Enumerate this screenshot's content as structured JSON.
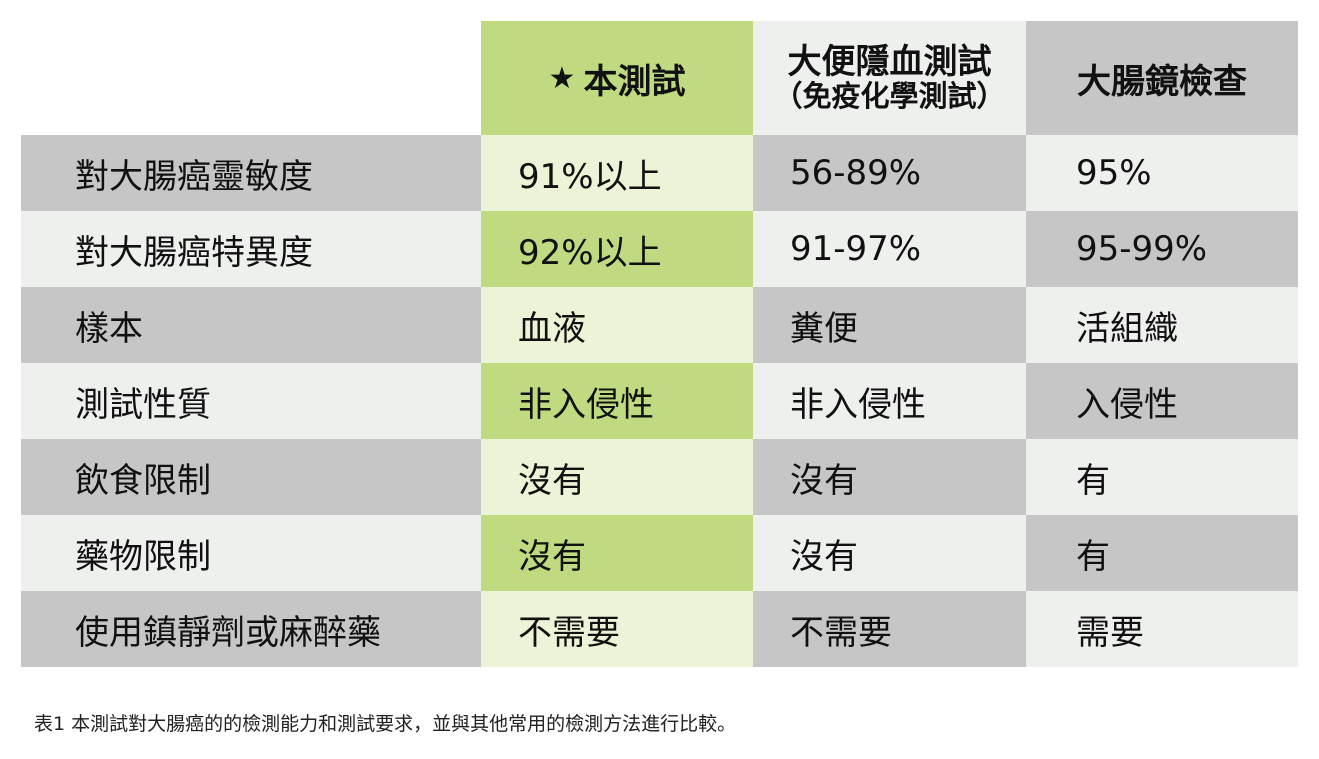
{
  "header": {
    "col1_star": "★",
    "col1": "本測試",
    "col2_line1": "大便隱血測試",
    "col2_line2": "（免疫化學測試）",
    "col3": "大腸鏡檢查"
  },
  "rows": [
    {
      "label": "對大腸癌靈敏度",
      "ours": "91%以上",
      "fit": "56-89%",
      "colonoscopy": "95%"
    },
    {
      "label": "對大腸癌特異度",
      "ours": "92%以上",
      "fit": "91-97%",
      "colonoscopy": "95-99%"
    },
    {
      "label": "樣本",
      "ours": "血液",
      "fit": "糞便",
      "colonoscopy": "活組織"
    },
    {
      "label": "測試性質",
      "ours": "非入侵性",
      "fit": "非入侵性",
      "colonoscopy": "入侵性"
    },
    {
      "label": "飲食限制",
      "ours": "沒有",
      "fit": "沒有",
      "colonoscopy": "有"
    },
    {
      "label": "藥物限制",
      "ours": "沒有",
      "fit": "沒有",
      "colonoscopy": "有"
    },
    {
      "label": "使用鎮靜劑或麻醉藥",
      "ours": "不需要",
      "fit": "不需要",
      "colonoscopy": "需要"
    }
  ],
  "caption": "表1 本測試對大腸癌的的檢測能力和測試要求，並與其他常用的檢測方法進行比較。",
  "colors": {
    "green": "#bfda80",
    "light_green": "#edf3d7",
    "gray": "#c6c6c6",
    "light_gray": "#eef0ee"
  }
}
